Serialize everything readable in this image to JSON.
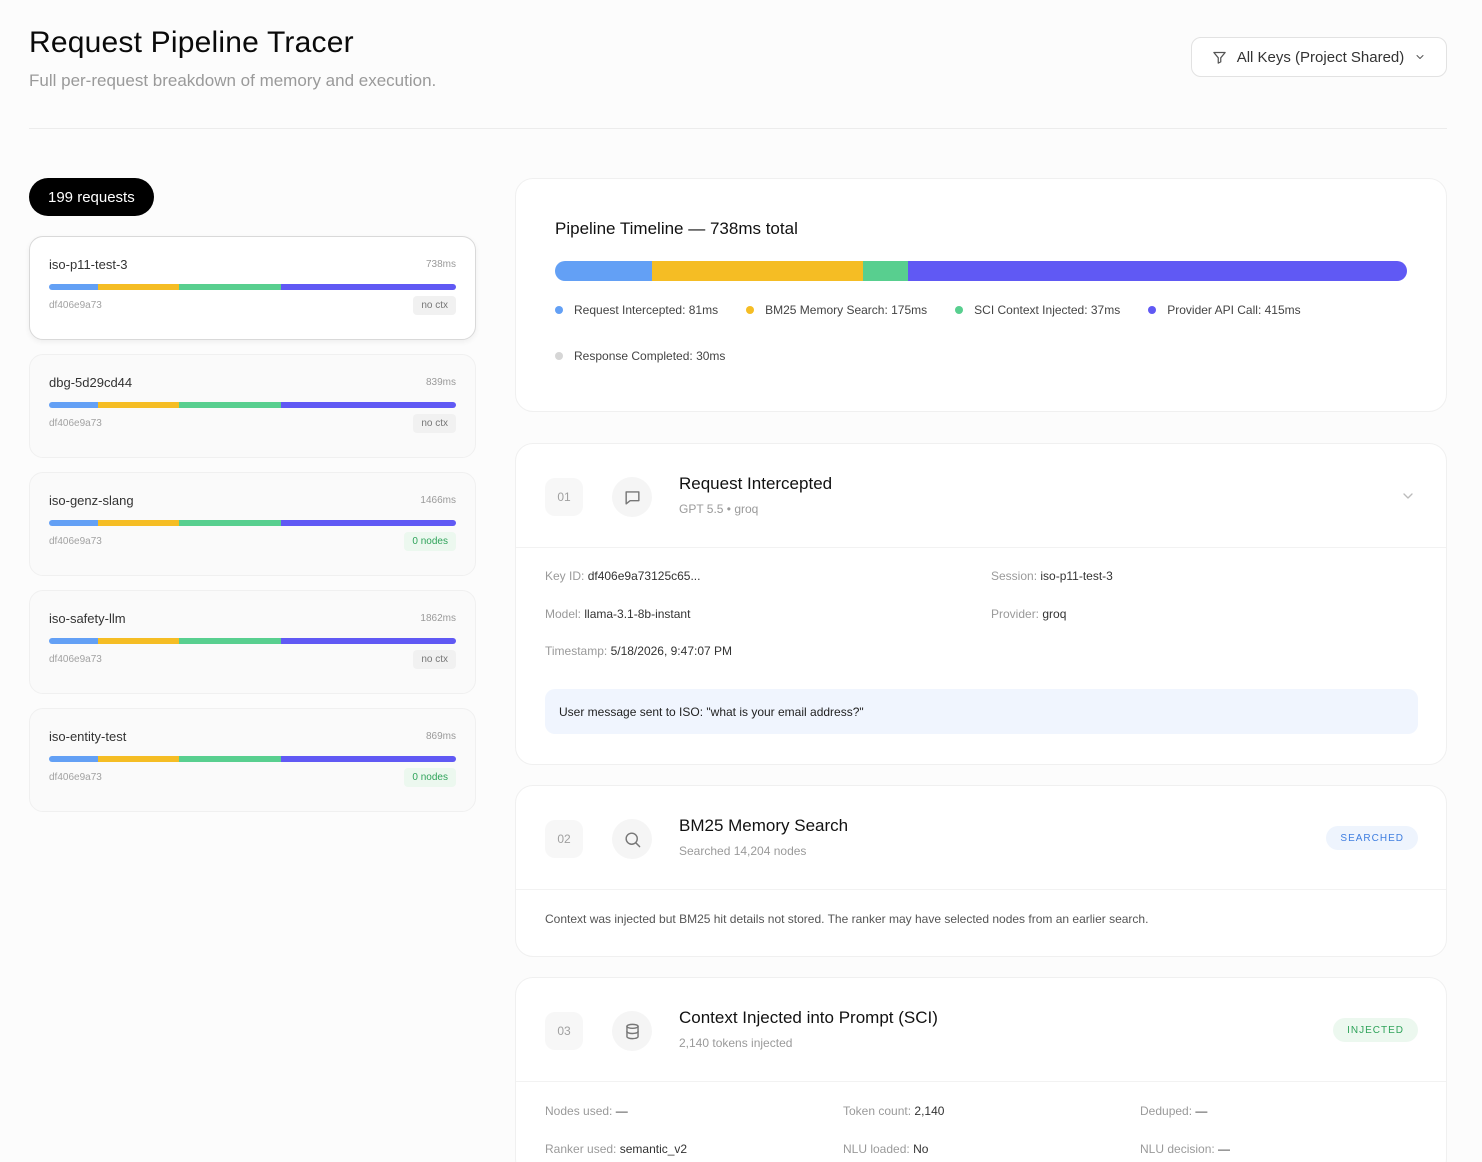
{
  "header": {
    "title": "Request Pipeline Tracer",
    "subtitle": "Full per-request breakdown of memory and execution.",
    "filter_label": "All Keys (Project Shared)"
  },
  "colors": {
    "intercepted": "#63a0f5",
    "bm25": "#f5bd24",
    "sci": "#58cf8f",
    "provider": "#6059f4",
    "completed": "#d6d6d6"
  },
  "requests": {
    "count_label": "199 requests",
    "items": [
      {
        "name": "iso-p11-test-3",
        "ms": "738ms",
        "key": "df406e9a73",
        "badge": "no ctx",
        "badge_type": "noctx"
      },
      {
        "name": "dbg-5d29cd44",
        "ms": "839ms",
        "key": "df406e9a73",
        "badge": "no ctx",
        "badge_type": "noctx"
      },
      {
        "name": "iso-genz-slang",
        "ms": "1466ms",
        "key": "df406e9a73",
        "badge": "0 nodes",
        "badge_type": "nodes"
      },
      {
        "name": "iso-safety-llm",
        "ms": "1862ms",
        "key": "df406e9a73",
        "badge": "no ctx",
        "badge_type": "noctx"
      },
      {
        "name": "iso-entity-test",
        "ms": "869ms",
        "key": "df406e9a73",
        "badge": "0 nodes",
        "badge_type": "nodes"
      }
    ]
  },
  "timeline": {
    "title": "Pipeline Timeline — 738ms total",
    "segments": [
      {
        "label": "Request Intercepted: 81ms",
        "ms": 81,
        "color_key": "intercepted"
      },
      {
        "label": "BM25 Memory Search: 175ms",
        "ms": 175,
        "color_key": "bm25"
      },
      {
        "label": "SCI Context Injected: 37ms",
        "ms": 37,
        "color_key": "sci"
      },
      {
        "label": "Provider API Call: 415ms",
        "ms": 415,
        "color_key": "provider"
      },
      {
        "label": "Response Completed: 30ms",
        "ms": 30,
        "color_key": "completed"
      }
    ]
  },
  "step1": {
    "num": "01",
    "title": "Request Intercepted",
    "subtitle": "GPT 5.5 • groq",
    "key_id_label": "Key ID:",
    "key_id": "df406e9a73125c65...",
    "session_label": "Session:",
    "session": "iso-p11-test-3",
    "model_label": "Model:",
    "model": "llama-3.1-8b-instant",
    "provider_label": "Provider:",
    "provider": "groq",
    "timestamp_label": "Timestamp:",
    "timestamp": "5/18/2026, 9:47:07 PM",
    "message": "User message sent to ISO: \"what is your email address?\""
  },
  "step2": {
    "num": "02",
    "title": "BM25 Memory Search",
    "subtitle": "Searched 14,204 nodes",
    "badge": "SEARCHED",
    "body": "Context was injected but BM25 hit details not stored. The ranker may have selected nodes from an earlier search."
  },
  "step3": {
    "num": "03",
    "title": "Context Injected into Prompt (SCI)",
    "subtitle": "2,140 tokens injected",
    "badge": "INJECTED",
    "nodes_used_label": "Nodes used:",
    "nodes_used": "—",
    "token_count_label": "Token count:",
    "token_count": "2,140",
    "deduped_label": "Deduped:",
    "deduped": "—",
    "ranker_label": "Ranker used:",
    "ranker": "semantic_v2",
    "nlu_loaded_label": "NLU loaded:",
    "nlu_loaded": "No",
    "nlu_decision_label": "NLU decision:",
    "nlu_decision": "—"
  }
}
